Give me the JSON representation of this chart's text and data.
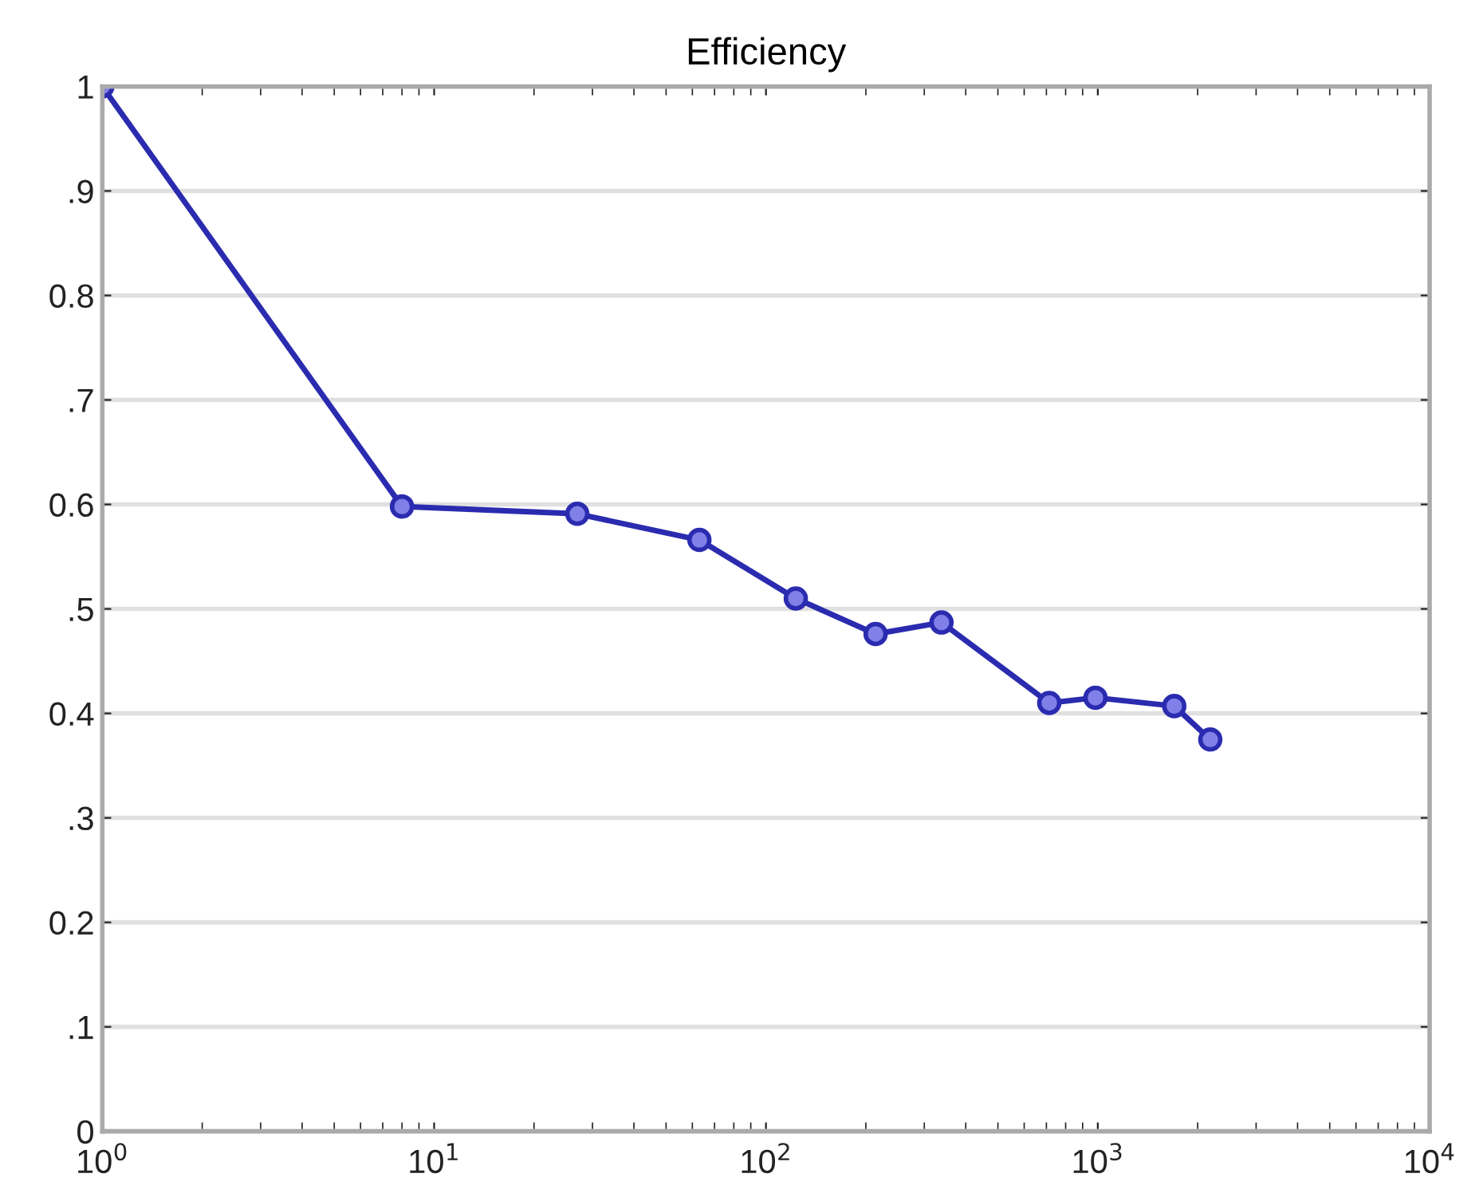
{
  "chart_data": {
    "type": "line",
    "title": "Efficiency",
    "x": [
      1,
      8,
      27,
      63,
      123,
      214,
      338,
      714,
      984,
      1700,
      2183
    ],
    "series": [
      {
        "color": "#2b2bb0",
        "values": [
          1.0,
          0.598,
          0.591,
          0.566,
          0.51,
          0.476,
          0.487,
          0.41,
          0.415,
          0.407,
          0.375
        ]
      }
    ],
    "log": "x",
    "xlim": [
      1,
      10000
    ],
    "xticks": [
      {
        "value": 1,
        "label": "10$^{0}$"
      },
      {
        "value": 10,
        "label": "10$^{1}$"
      },
      {
        "value": 100,
        "label": "10$^{2}$"
      },
      {
        "value": 1000,
        "label": "10$^{3}$"
      },
      {
        "value": 10000,
        "label": "10$^{4}$"
      }
    ],
    "ylim": [
      0,
      1
    ],
    "yticks": [
      0,
      {
        "value": 0.1,
        "label": ".1"
      },
      0.2,
      {
        "value": 0.3,
        "label": ".3"
      },
      0.4,
      {
        "value": 0.5,
        "label": ".5"
      },
      0.6,
      {
        "value": 0.7,
        "label": ".7"
      },
      0.8,
      {
        "value": 0.9,
        "label": ".9"
      },
      1
    ],
    "grid": "y",
    "marker": "circle",
    "line_style": "solid"
  }
}
